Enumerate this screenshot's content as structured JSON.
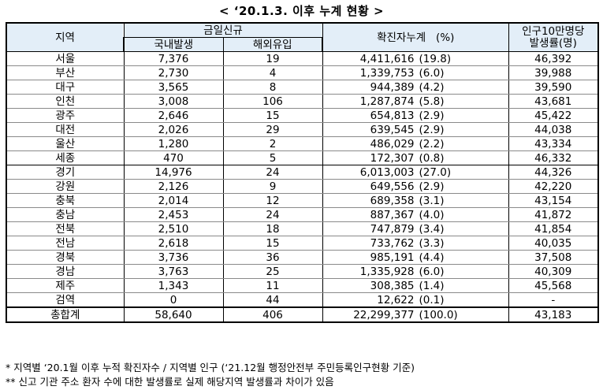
{
  "title": "< ‘20.1.3. 이후 누계 현황 >",
  "headers": {
    "region": "지역",
    "today_new": "금일신규",
    "domestic": "국내발생",
    "overseas": "해외유입",
    "cumulative": "확진자누계",
    "percent": "(%)",
    "rate_line1": "인구10만명당",
    "rate_line2": "발생률(명)"
  },
  "rows": [
    {
      "region": "서울",
      "domestic": "7,376",
      "overseas": "19",
      "cum": "4,411,616",
      "pct": "(19.8)",
      "rate": "46,392"
    },
    {
      "region": "부산",
      "domestic": "2,730",
      "overseas": "4",
      "cum": "1,339,753",
      "pct": "(6.0)",
      "rate": "39,988"
    },
    {
      "region": "대구",
      "domestic": "3,565",
      "overseas": "8",
      "cum": "944,389",
      "pct": "(4.2)",
      "rate": "39,590"
    },
    {
      "region": "인천",
      "domestic": "3,008",
      "overseas": "106",
      "cum": "1,287,874",
      "pct": "(5.8)",
      "rate": "43,681"
    },
    {
      "region": "광주",
      "domestic": "2,646",
      "overseas": "15",
      "cum": "654,813",
      "pct": "(2.9)",
      "rate": "45,422"
    },
    {
      "region": "대전",
      "domestic": "2,026",
      "overseas": "29",
      "cum": "639,545",
      "pct": "(2.9)",
      "rate": "44,038"
    },
    {
      "region": "울산",
      "domestic": "1,280",
      "overseas": "2",
      "cum": "486,029",
      "pct": "(2.2)",
      "rate": "43,334"
    },
    {
      "region": "세종",
      "domestic": "470",
      "overseas": "5",
      "cum": "172,307",
      "pct": "(0.8)",
      "rate": "46,332"
    },
    {
      "region": "경기",
      "domestic": "14,976",
      "overseas": "24",
      "cum": "6,013,003",
      "pct": "(27.0)",
      "rate": "44,326"
    },
    {
      "region": "강원",
      "domestic": "2,126",
      "overseas": "9",
      "cum": "649,556",
      "pct": "(2.9)",
      "rate": "42,220"
    },
    {
      "region": "충북",
      "domestic": "2,014",
      "overseas": "12",
      "cum": "689,358",
      "pct": "(3.1)",
      "rate": "43,154"
    },
    {
      "region": "충남",
      "domestic": "2,453",
      "overseas": "24",
      "cum": "887,367",
      "pct": "(4.0)",
      "rate": "41,872"
    },
    {
      "region": "전북",
      "domestic": "2,510",
      "overseas": "18",
      "cum": "747,879",
      "pct": "(3.4)",
      "rate": "41,854"
    },
    {
      "region": "전남",
      "domestic": "2,618",
      "overseas": "15",
      "cum": "733,762",
      "pct": "(3.3)",
      "rate": "40,035"
    },
    {
      "region": "경북",
      "domestic": "3,736",
      "overseas": "36",
      "cum": "985,191",
      "pct": "(4.4)",
      "rate": "37,508"
    },
    {
      "region": "경남",
      "domestic": "3,763",
      "overseas": "25",
      "cum": "1,335,928",
      "pct": "(6.0)",
      "rate": "40,309"
    },
    {
      "region": "제주",
      "domestic": "1,343",
      "overseas": "11",
      "cum": "308,385",
      "pct": "(1.4)",
      "rate": "45,568"
    },
    {
      "region": "검역",
      "domestic": "0",
      "overseas": "44",
      "cum": "12,622",
      "pct": "(0.1)",
      "rate": "-"
    }
  ],
  "total": {
    "region": "총합계",
    "domestic": "58,640",
    "overseas": "406",
    "cum": "22,299,377",
    "pct": "(100.0)",
    "rate": "43,183"
  },
  "notes": [
    "* 지역별 ‘20.1월 이후 누적 확진자수 / 지역별 인구 (‘21.12월 행정안전부 주민등록인구현황 기준)",
    "** 신고 기관 주소 환자 수에 대한 발생률로 실제 해당지역 발생률과 차이가 있음"
  ]
}
